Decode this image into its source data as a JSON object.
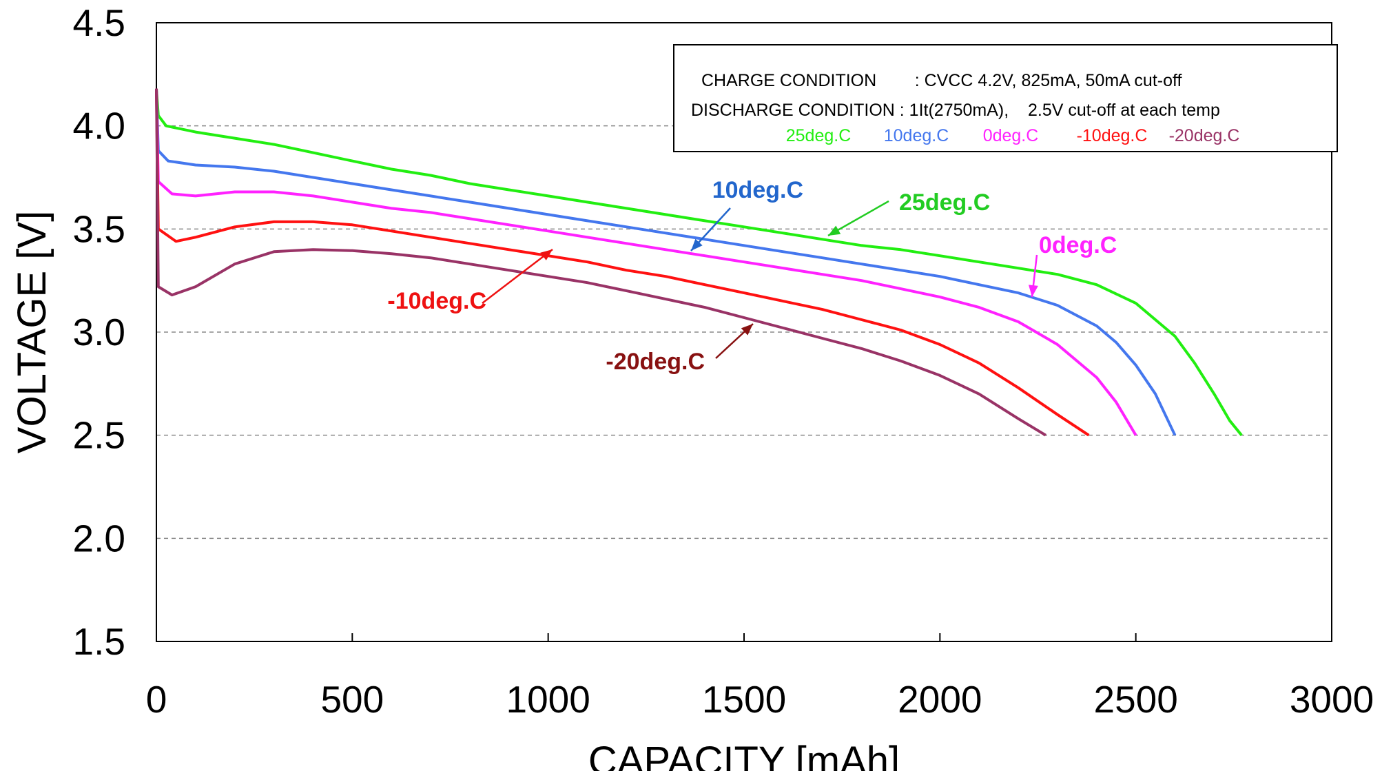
{
  "chart_data": {
    "type": "line",
    "xlabel": "CAPACITY [mAh]",
    "ylabel": "VOLTAGE [V]",
    "xlim": [
      0,
      3000
    ],
    "ylim": [
      1.5,
      4.5
    ],
    "x_ticks": [
      "0",
      "500",
      "1000",
      "1500",
      "2000",
      "2500",
      "3000"
    ],
    "y_ticks": [
      "4.5",
      "4.0",
      "3.5",
      "3.0",
      "2.5",
      "2.0",
      "1.5"
    ],
    "grid": "horizontal-dashed",
    "legend_box": {
      "line1": "CHARGE CONDITION        : CVCC 4.2V, 825mA, 50mA cut-off",
      "line2": "DISCHARGE CONDITION : 1It(2750mA),    2.5V cut-off at each temp",
      "placement": "top-right"
    },
    "series": [
      {
        "name": "25deg.C",
        "annotation": "25deg.C",
        "color": "#22ee11",
        "label_color": "#22cc22",
        "points": [
          [
            0,
            4.18
          ],
          [
            5,
            4.05
          ],
          [
            25,
            4.0
          ],
          [
            100,
            3.97
          ],
          [
            200,
            3.94
          ],
          [
            300,
            3.91
          ],
          [
            400,
            3.87
          ],
          [
            500,
            3.83
          ],
          [
            600,
            3.79
          ],
          [
            700,
            3.76
          ],
          [
            800,
            3.72
          ],
          [
            900,
            3.69
          ],
          [
            1000,
            3.66
          ],
          [
            1100,
            3.63
          ],
          [
            1200,
            3.6
          ],
          [
            1300,
            3.57
          ],
          [
            1400,
            3.54
          ],
          [
            1500,
            3.51
          ],
          [
            1600,
            3.48
          ],
          [
            1700,
            3.45
          ],
          [
            1800,
            3.42
          ],
          [
            1900,
            3.4
          ],
          [
            2000,
            3.37
          ],
          [
            2100,
            3.34
          ],
          [
            2200,
            3.31
          ],
          [
            2300,
            3.28
          ],
          [
            2400,
            3.23
          ],
          [
            2500,
            3.14
          ],
          [
            2600,
            2.98
          ],
          [
            2650,
            2.85
          ],
          [
            2700,
            2.7
          ],
          [
            2740,
            2.57
          ],
          [
            2770,
            2.5
          ]
        ]
      },
      {
        "name": "10deg.C",
        "annotation": "10deg.C",
        "color": "#4477ee",
        "label_color": "#2266cc",
        "points": [
          [
            0,
            4.18
          ],
          [
            5,
            3.88
          ],
          [
            30,
            3.83
          ],
          [
            100,
            3.81
          ],
          [
            200,
            3.8
          ],
          [
            300,
            3.78
          ],
          [
            400,
            3.75
          ],
          [
            500,
            3.72
          ],
          [
            600,
            3.69
          ],
          [
            700,
            3.66
          ],
          [
            800,
            3.63
          ],
          [
            900,
            3.6
          ],
          [
            1000,
            3.57
          ],
          [
            1100,
            3.54
          ],
          [
            1200,
            3.51
          ],
          [
            1300,
            3.48
          ],
          [
            1400,
            3.45
          ],
          [
            1500,
            3.42
          ],
          [
            1600,
            3.39
          ],
          [
            1700,
            3.36
          ],
          [
            1800,
            3.33
          ],
          [
            1900,
            3.3
          ],
          [
            2000,
            3.27
          ],
          [
            2100,
            3.23
          ],
          [
            2200,
            3.19
          ],
          [
            2300,
            3.13
          ],
          [
            2400,
            3.03
          ],
          [
            2450,
            2.95
          ],
          [
            2500,
            2.84
          ],
          [
            2550,
            2.7
          ],
          [
            2600,
            2.5
          ]
        ]
      },
      {
        "name": "0deg.C",
        "annotation": "0deg.C",
        "color": "#ff22ff",
        "label_color": "#ff22ff",
        "points": [
          [
            0,
            4.18
          ],
          [
            5,
            3.73
          ],
          [
            40,
            3.67
          ],
          [
            100,
            3.66
          ],
          [
            200,
            3.68
          ],
          [
            300,
            3.68
          ],
          [
            400,
            3.66
          ],
          [
            500,
            3.63
          ],
          [
            600,
            3.6
          ],
          [
            700,
            3.58
          ],
          [
            800,
            3.55
          ],
          [
            900,
            3.52
          ],
          [
            1000,
            3.49
          ],
          [
            1100,
            3.46
          ],
          [
            1200,
            3.43
          ],
          [
            1300,
            3.4
          ],
          [
            1400,
            3.37
          ],
          [
            1500,
            3.34
          ],
          [
            1600,
            3.31
          ],
          [
            1700,
            3.28
          ],
          [
            1800,
            3.25
          ],
          [
            1900,
            3.21
          ],
          [
            2000,
            3.17
          ],
          [
            2100,
            3.12
          ],
          [
            2200,
            3.05
          ],
          [
            2300,
            2.94
          ],
          [
            2400,
            2.78
          ],
          [
            2450,
            2.66
          ],
          [
            2500,
            2.5
          ]
        ]
      },
      {
        "name": "-10deg.C",
        "annotation": "-10deg.C",
        "color": "#ff1111",
        "label_color": "#ee1111",
        "points": [
          [
            0,
            4.18
          ],
          [
            5,
            3.5
          ],
          [
            50,
            3.44
          ],
          [
            100,
            3.46
          ],
          [
            200,
            3.51
          ],
          [
            300,
            3.535
          ],
          [
            400,
            3.535
          ],
          [
            500,
            3.52
          ],
          [
            600,
            3.49
          ],
          [
            700,
            3.46
          ],
          [
            800,
            3.43
          ],
          [
            900,
            3.4
          ],
          [
            1000,
            3.37
          ],
          [
            1100,
            3.34
          ],
          [
            1200,
            3.3
          ],
          [
            1300,
            3.27
          ],
          [
            1400,
            3.23
          ],
          [
            1500,
            3.19
          ],
          [
            1600,
            3.15
          ],
          [
            1700,
            3.11
          ],
          [
            1800,
            3.06
          ],
          [
            1900,
            3.01
          ],
          [
            2000,
            2.94
          ],
          [
            2100,
            2.85
          ],
          [
            2200,
            2.73
          ],
          [
            2300,
            2.6
          ],
          [
            2380,
            2.5
          ]
        ]
      },
      {
        "name": "-20deg.C",
        "annotation": "-20deg.C",
        "color": "#993366",
        "label_color": "#881111",
        "points": [
          [
            0,
            4.18
          ],
          [
            5,
            3.22
          ],
          [
            40,
            3.18
          ],
          [
            100,
            3.22
          ],
          [
            200,
            3.33
          ],
          [
            300,
            3.39
          ],
          [
            400,
            3.4
          ],
          [
            500,
            3.395
          ],
          [
            600,
            3.38
          ],
          [
            700,
            3.36
          ],
          [
            800,
            3.33
          ],
          [
            900,
            3.3
          ],
          [
            1000,
            3.27
          ],
          [
            1100,
            3.24
          ],
          [
            1200,
            3.2
          ],
          [
            1300,
            3.16
          ],
          [
            1400,
            3.12
          ],
          [
            1500,
            3.07
          ],
          [
            1600,
            3.02
          ],
          [
            1700,
            2.97
          ],
          [
            1800,
            2.92
          ],
          [
            1900,
            2.86
          ],
          [
            2000,
            2.79
          ],
          [
            2100,
            2.7
          ],
          [
            2200,
            2.58
          ],
          [
            2270,
            2.5
          ]
        ]
      }
    ]
  }
}
